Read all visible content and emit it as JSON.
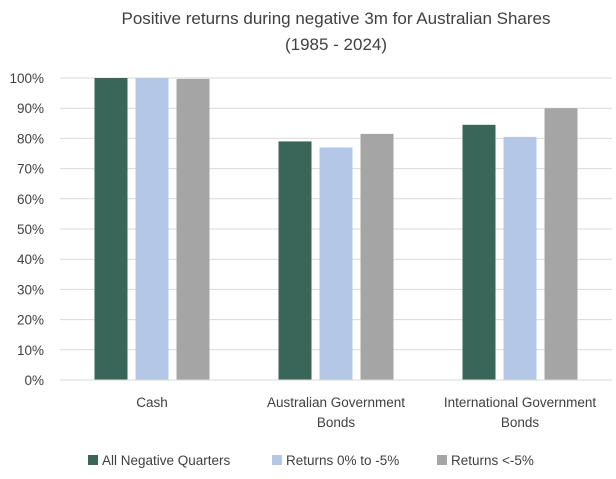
{
  "chart_data": {
    "type": "bar",
    "title": [
      "Positive returns during negative 3m for Australian Shares",
      "(1985 - 2024)"
    ],
    "categories": [
      [
        "Cash"
      ],
      [
        "Australian Government",
        "Bonds"
      ],
      [
        "International Government",
        "Bonds"
      ]
    ],
    "series": [
      {
        "name": "All Negative Quarters",
        "color": "#3a6659",
        "values": [
          1.0,
          0.79,
          0.845
        ]
      },
      {
        "name": "Returns 0% to -5%",
        "color": "#b4c7e7",
        "values": [
          1.0,
          0.77,
          0.805
        ]
      },
      {
        "name": "Returns <-5%",
        "color": "#a5a5a5",
        "values": [
          0.997,
          0.815,
          0.9
        ]
      }
    ],
    "ylim": [
      0,
      1
    ],
    "yticks": [
      "0%",
      "10%",
      "20%",
      "30%",
      "40%",
      "50%",
      "60%",
      "70%",
      "80%",
      "90%",
      "100%"
    ],
    "grid": true,
    "legend": "bottom"
  }
}
